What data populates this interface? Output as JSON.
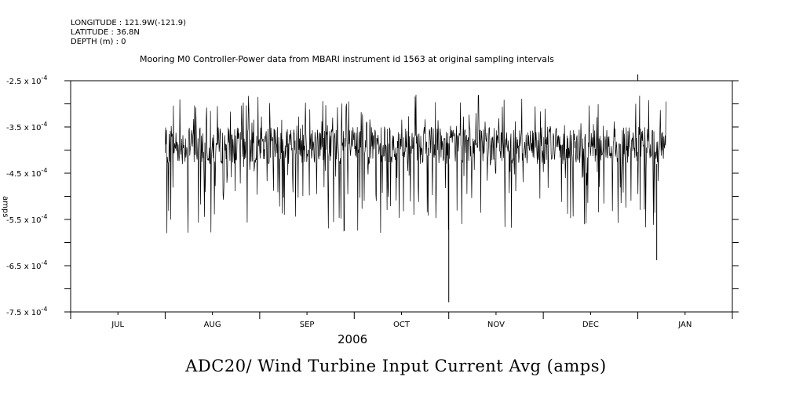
{
  "header": {
    "longitude": "LONGITUDE : 121.9W(-121.9)",
    "latitude": "LATITUDE : 36.8N",
    "depth": "DEPTH (m) : 0"
  },
  "chart_data": {
    "type": "line",
    "title": "ADC20/ Wind Turbine Input Current Avg (amps)",
    "subtitle": "Mooring M0 Controller-Power data from MBARI instrument id 1563 at original sampling intervals",
    "ylabel": "amps",
    "x_year": "2006",
    "x_tick_labels": [
      "JUL",
      "AUG",
      "SEP",
      "OCT",
      "NOV",
      "DEC",
      "JAN"
    ],
    "x_range_months": [
      0,
      7
    ],
    "data_start_month": 1.0,
    "data_end_month": 6.3,
    "ylim": [
      -0.00075,
      -0.00025
    ],
    "y_tick_values": [
      -0.00025,
      -0.00035,
      -0.00045,
      -0.00055,
      -0.00065,
      -0.00075
    ],
    "y_tick_mantissas": [
      "-2.5",
      "-3.5",
      "-4.5",
      "-5.5",
      "-6.5",
      "-7.5"
    ],
    "y_tick_exponent": "-4",
    "series": [
      {
        "typical_band": [
          -0.00043,
          -0.00035
        ],
        "typical_max": -0.00028,
        "typical_min": -0.00058,
        "notable_points": [
          {
            "x_month": 4.0,
            "y": -0.000729
          },
          {
            "x_month": 6.2,
            "y": -0.000638
          }
        ]
      }
    ]
  }
}
